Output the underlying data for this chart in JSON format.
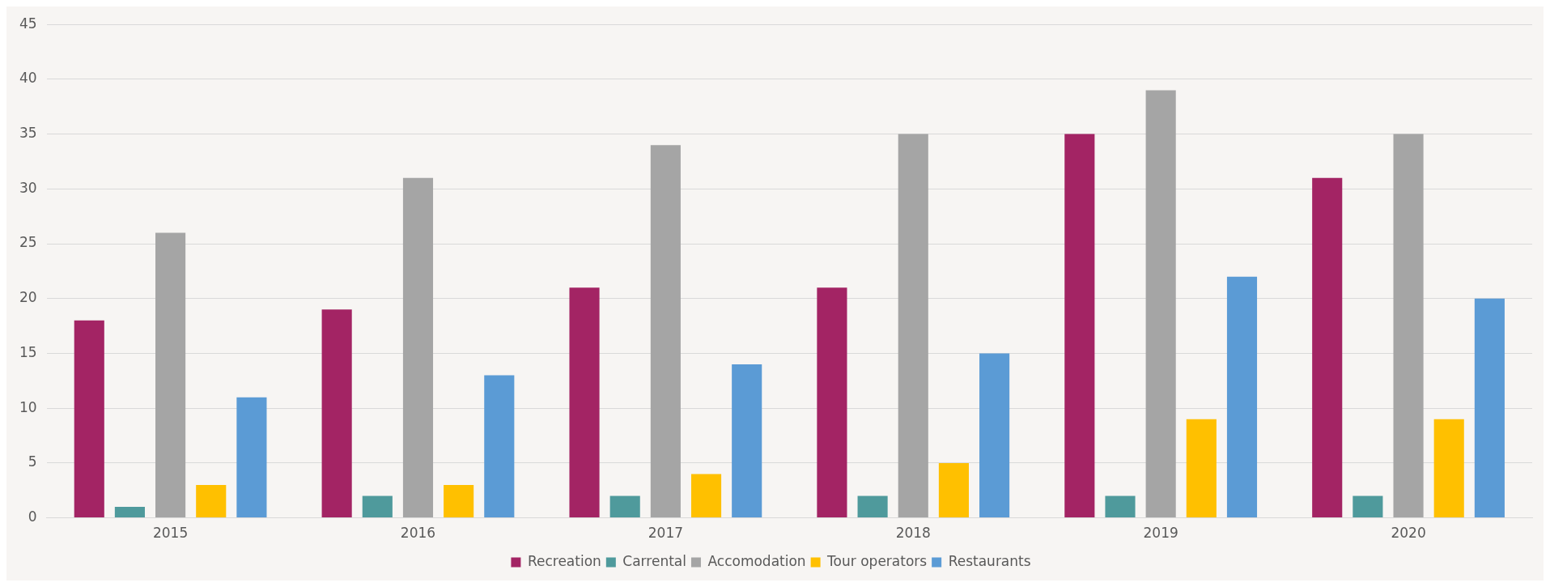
{
  "chart_data": {
    "type": "bar",
    "categories": [
      "2015",
      "2016",
      "2017",
      "2018",
      "2019",
      "2020"
    ],
    "series": [
      {
        "name": "Recreation",
        "color": "#a32464",
        "values": [
          18,
          19,
          21,
          21,
          35,
          31
        ]
      },
      {
        "name": "Carrental",
        "color": "#4f9a9c",
        "values": [
          1,
          2,
          2,
          2,
          2,
          2
        ]
      },
      {
        "name": "Accomodation",
        "color": "#a5a5a5",
        "values": [
          26,
          31,
          34,
          35,
          39,
          35
        ]
      },
      {
        "name": "Tour operators",
        "color": "#ffc000",
        "values": [
          3,
          3,
          4,
          5,
          9,
          9
        ]
      },
      {
        "name": "Restaurants",
        "color": "#5b9bd5",
        "values": [
          11,
          13,
          14,
          15,
          22,
          20
        ]
      }
    ],
    "ylim": [
      0,
      45
    ],
    "yticks": [
      0,
      5,
      10,
      15,
      20,
      25,
      30,
      35,
      40,
      45
    ],
    "grid": "y",
    "legend": "bottom"
  }
}
